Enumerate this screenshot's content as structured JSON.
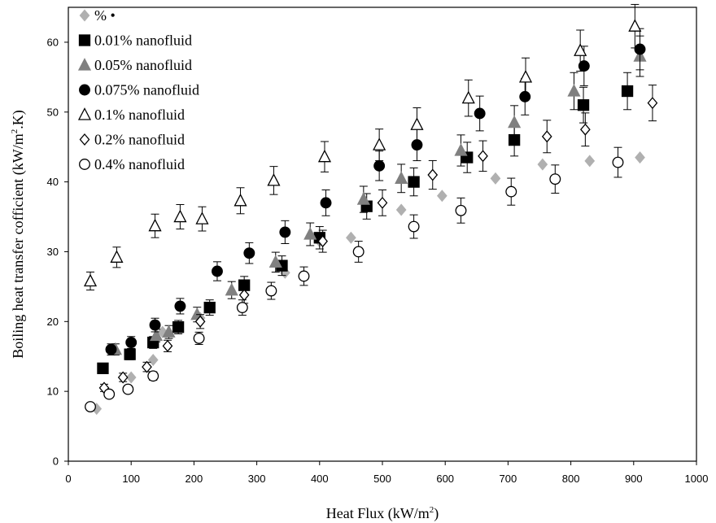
{
  "chart_data": {
    "type": "scatter",
    "xlabel": "Heat Flux (kW/m",
    "xlabel_sup": "2",
    "xlabel_end": ")",
    "ylabel": "Boiling heat transfer cofficient (kW/m",
    "ylabel_sup": "2",
    "ylabel_end": ".K)",
    "xlim": [
      0,
      1000
    ],
    "ylim": [
      0,
      65
    ],
    "x_ticks": [
      0,
      100,
      200,
      300,
      400,
      500,
      600,
      700,
      800,
      900,
      1000
    ],
    "y_ticks": [
      0,
      10,
      20,
      30,
      40,
      50,
      60
    ],
    "grid": false,
    "legend_position": "top-left",
    "series": [
      {
        "name": "% •",
        "marker": "diamond",
        "filled": true,
        "color": "#b0b0b0",
        "points": [
          [
            45,
            7.5
          ],
          [
            100,
            12
          ],
          [
            135,
            14.5
          ],
          [
            150,
            18.5
          ],
          [
            210,
            20.5
          ],
          [
            280,
            25
          ],
          [
            345,
            27
          ],
          [
            400,
            31.5
          ],
          [
            450,
            32
          ],
          [
            530,
            36
          ],
          [
            595,
            38
          ],
          [
            680,
            40.5
          ],
          [
            755,
            42.5
          ],
          [
            830,
            43
          ],
          [
            910,
            43.5
          ]
        ],
        "error_bars": false
      },
      {
        "name": "0.01% nanofluid",
        "marker": "square",
        "filled": true,
        "color": "#000000",
        "points": [
          [
            55,
            13.3
          ],
          [
            98,
            15.3
          ],
          [
            135,
            17
          ],
          [
            175,
            19.2
          ],
          [
            225,
            22
          ],
          [
            280,
            25.2
          ],
          [
            340,
            28
          ],
          [
            400,
            32
          ],
          [
            475,
            36.5
          ],
          [
            550,
            40
          ],
          [
            635,
            43.5
          ],
          [
            710,
            46
          ],
          [
            820,
            51
          ],
          [
            890,
            53
          ]
        ],
        "error_bars": true
      },
      {
        "name": "0.05% nanofluid",
        "marker": "triangle",
        "filled": true,
        "color": "#808080",
        "points": [
          [
            75,
            16
          ],
          [
            140,
            18
          ],
          [
            160,
            18.5
          ],
          [
            205,
            21
          ],
          [
            260,
            24.5
          ],
          [
            330,
            28.5
          ],
          [
            385,
            32.5
          ],
          [
            470,
            37.5
          ],
          [
            530,
            40.5
          ],
          [
            625,
            44.5
          ],
          [
            710,
            48.5
          ],
          [
            805,
            53
          ],
          [
            910,
            58
          ]
        ],
        "error_bars": true
      },
      {
        "name": "0.075% nanofluid",
        "marker": "circle",
        "filled": true,
        "color": "#000000",
        "points": [
          [
            68,
            16
          ],
          [
            100,
            17
          ],
          [
            138,
            19.5
          ],
          [
            178,
            22.2
          ],
          [
            237,
            27.2
          ],
          [
            288,
            29.8
          ],
          [
            345,
            32.8
          ],
          [
            410,
            37
          ],
          [
            495,
            42.3
          ],
          [
            555,
            45.3
          ],
          [
            655,
            49.8
          ],
          [
            727,
            52.2
          ],
          [
            821,
            56.6
          ],
          [
            910,
            59
          ]
        ],
        "error_bars": true
      },
      {
        "name": "0.1% nanofluid",
        "marker": "triangle",
        "filled": false,
        "color": "#000000",
        "points": [
          [
            35,
            25.8
          ],
          [
            77,
            29.2
          ],
          [
            138,
            33.7
          ],
          [
            178,
            35
          ],
          [
            213,
            34.7
          ],
          [
            274,
            37.3
          ],
          [
            327,
            40.2
          ],
          [
            408,
            43.6
          ],
          [
            495,
            45.3
          ],
          [
            555,
            48.2
          ],
          [
            637,
            52
          ],
          [
            728,
            55
          ],
          [
            815,
            58.8
          ],
          [
            902,
            62.3
          ]
        ],
        "error_bars": true
      },
      {
        "name": "0.2% nanofluid",
        "marker": "diamond",
        "filled": false,
        "color": "#000000",
        "points": [
          [
            57,
            10.5
          ],
          [
            87,
            12
          ],
          [
            125,
            13.5
          ],
          [
            158,
            16.5
          ],
          [
            210,
            20
          ],
          [
            280,
            23.8
          ],
          [
            405,
            31.5
          ],
          [
            500,
            37
          ],
          [
            580,
            41
          ],
          [
            660,
            43.7
          ],
          [
            762,
            46.5
          ],
          [
            823,
            47.5
          ],
          [
            930,
            51.3
          ]
        ],
        "error_bars": true
      },
      {
        "name": "0.4% nanofluid",
        "marker": "circle",
        "filled": false,
        "color": "#000000",
        "points": [
          [
            35,
            7.8
          ],
          [
            65,
            9.6
          ],
          [
            95,
            10.3
          ],
          [
            135,
            12.2
          ],
          [
            208,
            17.6
          ],
          [
            277,
            22
          ],
          [
            323,
            24.4
          ],
          [
            375,
            26.5
          ],
          [
            462,
            30
          ],
          [
            550,
            33.6
          ],
          [
            625,
            35.9
          ],
          [
            705,
            38.6
          ],
          [
            775,
            40.4
          ],
          [
            875,
            42.8
          ]
        ],
        "error_bars": true
      }
    ]
  }
}
